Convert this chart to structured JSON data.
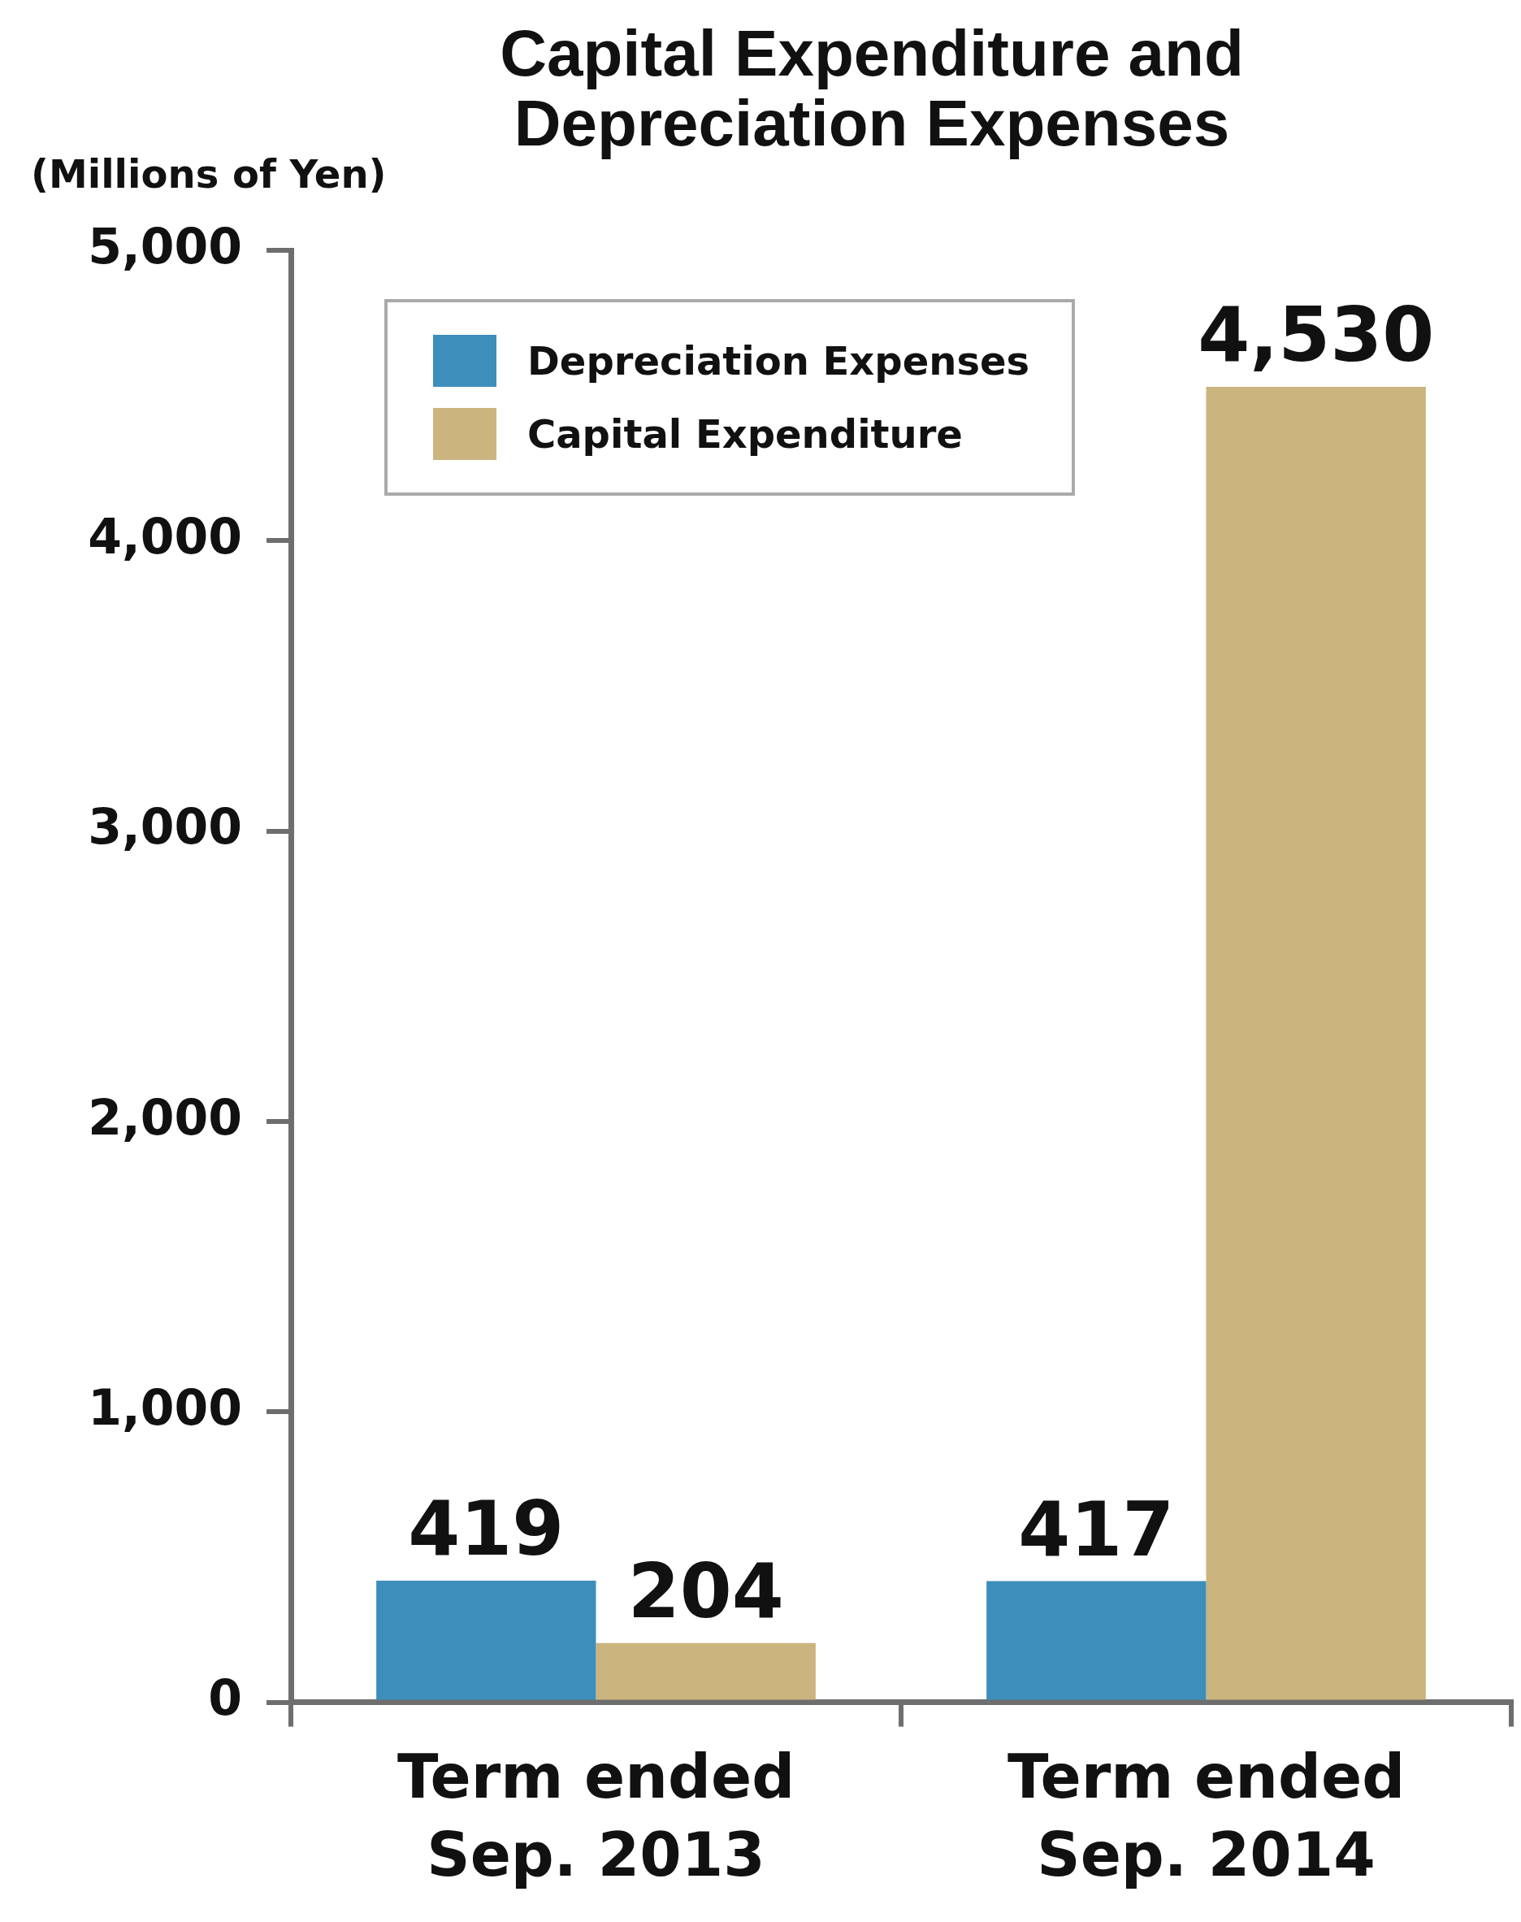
{
  "chart_data": {
    "type": "bar",
    "title": "Capital Expenditure and\nDepreciation Expenses",
    "ylabel": "(Millions of Yen)",
    "categories": [
      "Term ended\nSep. 2013",
      "Term ended\nSep. 2014"
    ],
    "series": [
      {
        "name": "Depreciation Expenses",
        "color": "#3e8ebb",
        "values": [
          419,
          417
        ],
        "value_labels": [
          "419",
          "417"
        ]
      },
      {
        "name": "Capital Expenditure",
        "color": "#cbb47e",
        "values": [
          204,
          4530
        ],
        "value_labels": [
          "204",
          "4,530"
        ]
      }
    ],
    "ylim": [
      0,
      5000
    ],
    "yticks": [
      0,
      {
        "value": 1000,
        "label": "1,000"
      },
      {
        "value": 2000,
        "label": "2,000"
      },
      {
        "value": 3000,
        "label": "3,000"
      },
      {
        "value": 4000,
        "label": "4,000"
      },
      {
        "value": 5000,
        "label": "5,000"
      }
    ],
    "grid": false,
    "legend": "top left"
  }
}
